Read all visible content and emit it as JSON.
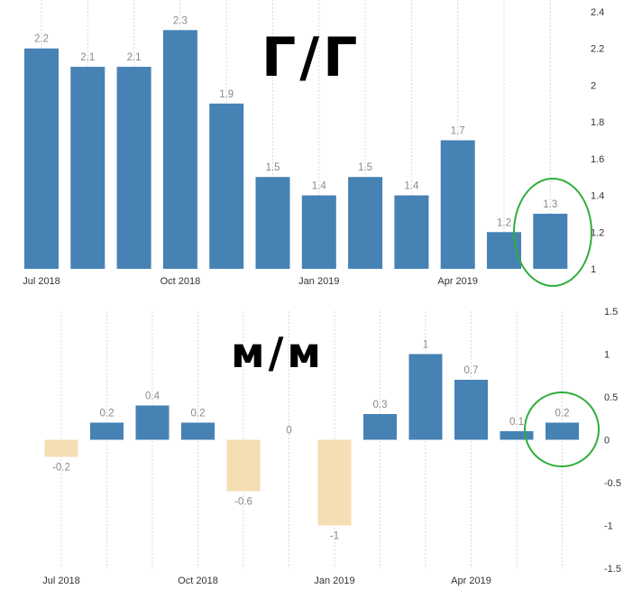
{
  "colors": {
    "positive": "#4682b4",
    "negative": "#f5deb3",
    "grid": "#d9d9d9",
    "dataLabel": "#8a8a8a",
    "tick": "#333333",
    "highlight": "#2fae3a"
  },
  "chart_data": [
    {
      "type": "bar",
      "label": "Г/Г",
      "categories": [
        "Jul 2018",
        "Aug 2018",
        "Sep 2018",
        "Oct 2018",
        "Nov 2018",
        "Dec 2018",
        "Jan 2019",
        "Feb 2019",
        "Mar 2019",
        "Apr 2019",
        "May 2019",
        "Jun 2019"
      ],
      "values": [
        2.2,
        2.1,
        2.1,
        2.3,
        1.9,
        1.5,
        1.4,
        1.5,
        1.4,
        1.7,
        1.2,
        1.3
      ],
      "value_labels": [
        "2.2",
        "2.1",
        "2.1",
        "2.3",
        "1.9",
        "1.5",
        "1.4",
        "1.5",
        "1.4",
        "1.7",
        "1.2",
        "1.3"
      ],
      "x_tick_labels": [
        "Jul 2018",
        "Oct 2018",
        "Jan 2019",
        "Apr 2019"
      ],
      "y_ticks": [
        "1",
        "1.2",
        "1.4",
        "1.6",
        "1.8",
        "2",
        "2.2",
        "2.4"
      ],
      "ylim": [
        1,
        2.4
      ],
      "y_axis_side": "right",
      "grid": "vertical",
      "highlighted_category": "Jun 2019"
    },
    {
      "type": "bar",
      "label": "м/м",
      "categories": [
        "Jul 2018",
        "Aug 2018",
        "Sep 2018",
        "Oct 2018",
        "Nov 2018",
        "Dec 2018",
        "Jan 2019",
        "Feb 2019",
        "Mar 2019",
        "Apr 2019",
        "May 2019",
        "Jun 2019"
      ],
      "values": [
        -0.2,
        0.2,
        0.4,
        0.2,
        -0.6,
        0,
        -1,
        0.3,
        1,
        0.7,
        0.1,
        0.2
      ],
      "value_labels": [
        "-0.2",
        "0.2",
        "0.4",
        "0.2",
        "-0.6",
        "0",
        "-1",
        "0.3",
        "1",
        "0.7",
        "0.1",
        "0.2"
      ],
      "x_tick_labels": [
        "Jul 2018",
        "Oct 2018",
        "Jan 2019",
        "Apr 2019"
      ],
      "y_ticks": [
        "-1.5",
        "-1",
        "-0.5",
        "0",
        "0.5",
        "1",
        "1.5"
      ],
      "ylim": [
        -1.5,
        1.5
      ],
      "y_axis_side": "right",
      "grid": "vertical",
      "highlighted_category": "Jun 2019"
    }
  ]
}
